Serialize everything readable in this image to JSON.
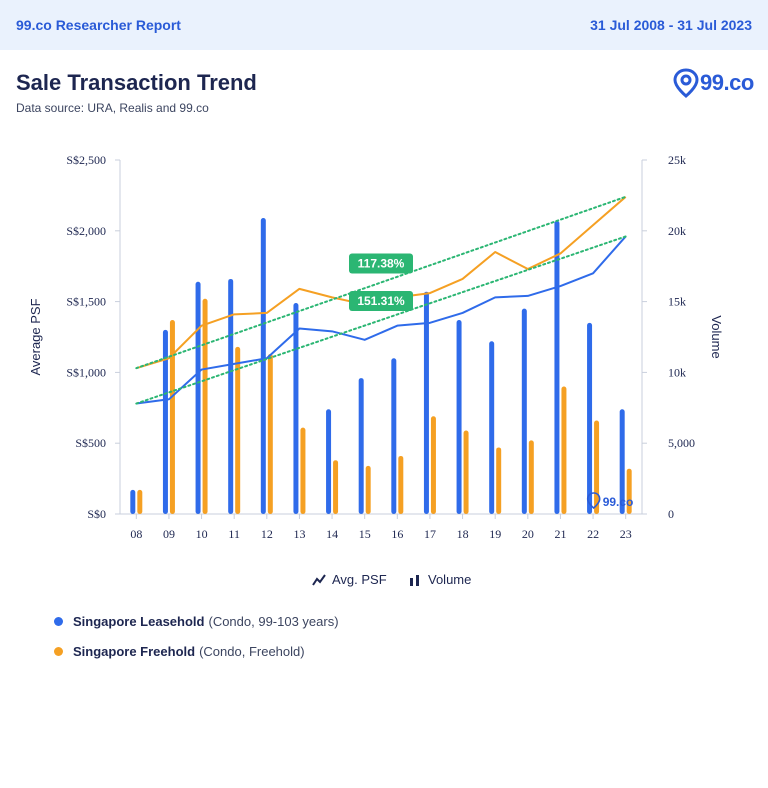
{
  "header": {
    "brand": "99.co Researcher Report",
    "date_range": "31 Jul 2008 - 31 Jul 2023"
  },
  "report": {
    "title": "Sale Transaction Trend",
    "source": "Data source: URA, Realis and 99.co"
  },
  "logo": {
    "text": "99.co",
    "color": "#2a5bd7"
  },
  "watermark": {
    "text": "99.co"
  },
  "legend": {
    "line_label": "Avg. PSF",
    "bar_label": "Volume"
  },
  "series_legend": [
    {
      "name": "Singapore Leasehold",
      "desc": "(Condo, 99-103 years)",
      "color": "#2f6bea"
    },
    {
      "name": "Singapore Freehold",
      "desc": "(Condo, Freehold)",
      "color": "#f5a023"
    }
  ],
  "chart_data": {
    "type": "bar",
    "categories": [
      "08",
      "09",
      "10",
      "11",
      "12",
      "13",
      "14",
      "15",
      "16",
      "17",
      "18",
      "19",
      "20",
      "21",
      "22",
      "23"
    ],
    "left_axis": {
      "label": "Average PSF",
      "range": [
        0,
        2500
      ],
      "ticks": [
        "S$0",
        "S$500",
        "S$1,000",
        "S$1,500",
        "S$2,000",
        "S$2,500"
      ]
    },
    "right_axis": {
      "label": "Volume",
      "range": [
        0,
        25000
      ],
      "ticks": [
        "0",
        "5,000",
        "10k",
        "15k",
        "20k",
        "25k"
      ]
    },
    "series": [
      {
        "name": "Singapore Leasehold",
        "kind": "volume-bar",
        "color": "#2f6bea",
        "values": [
          1700,
          13000,
          16400,
          16600,
          20900,
          14900,
          7400,
          9600,
          11000,
          15700,
          13700,
          12200,
          14500,
          20700,
          13500,
          7400
        ]
      },
      {
        "name": "Singapore Freehold",
        "kind": "volume-bar",
        "color": "#f5a023",
        "values": [
          1700,
          13700,
          15200,
          11800,
          11300,
          6100,
          3800,
          3400,
          4100,
          6900,
          5900,
          4700,
          5200,
          9000,
          6600,
          3200
        ]
      },
      {
        "name": "Singapore Leasehold",
        "kind": "psf-line",
        "color": "#2f6bea",
        "values": [
          780,
          810,
          1020,
          1060,
          1100,
          1310,
          1290,
          1230,
          1330,
          1350,
          1420,
          1530,
          1540,
          1610,
          1700,
          1960
        ]
      },
      {
        "name": "Singapore Freehold",
        "kind": "psf-line",
        "color": "#f5a023",
        "values": [
          1030,
          1100,
          1330,
          1410,
          1420,
          1590,
          1530,
          1480,
          1530,
          1560,
          1660,
          1850,
          1730,
          1840,
          2040,
          2240
        ]
      }
    ],
    "trendlines": [
      {
        "series": "Singapore Freehold",
        "color": "#2bb673",
        "from": 1030,
        "to": 2240,
        "label": "117.38%"
      },
      {
        "series": "Singapore Leasehold",
        "color": "#2bb673",
        "from": 780,
        "to": 1960,
        "label": "151.31%"
      }
    ],
    "grid": false
  }
}
